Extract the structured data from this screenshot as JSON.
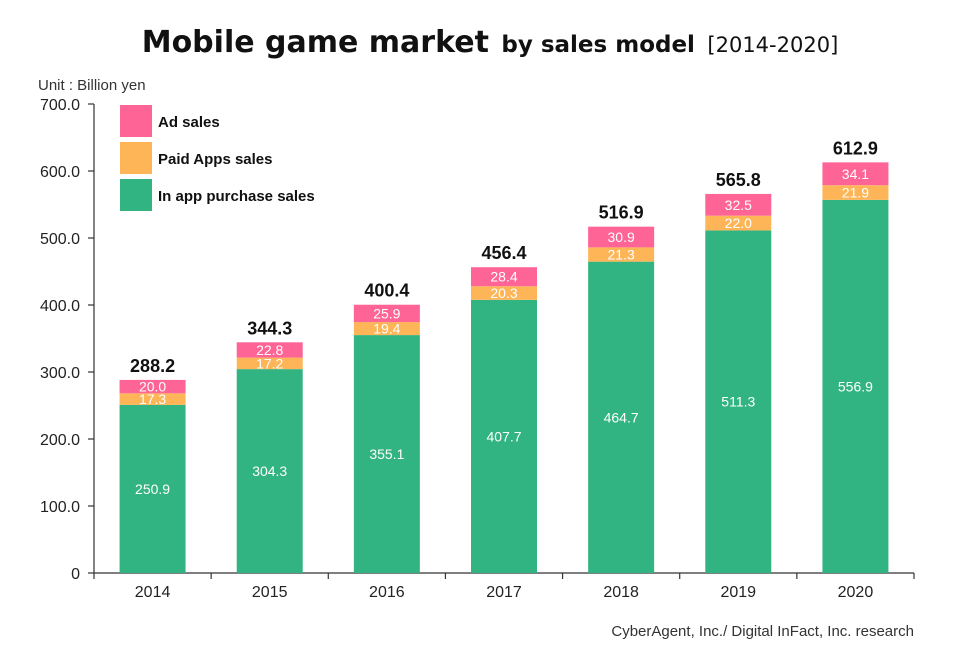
{
  "title": {
    "main": "Mobile game market",
    "sub": "by sales model",
    "years": "[2014-2020]"
  },
  "unit_label": "Unit : Billion yen",
  "source": "CyberAgent, Inc./ Digital InFact, Inc. research",
  "colors": {
    "ad": "#fe6496",
    "paid": "#fdb557",
    "inapp": "#32b482"
  },
  "chart_data": {
    "type": "bar",
    "stacked": true,
    "categories": [
      "2014",
      "2015",
      "2016",
      "2017",
      "2018",
      "2019",
      "2020"
    ],
    "ylim": [
      0,
      700
    ],
    "yticks": [
      {
        "value": 0,
        "label": "0"
      },
      {
        "value": 100,
        "label": "100.0"
      },
      {
        "value": 200,
        "label": "200.0"
      },
      {
        "value": 300,
        "label": "300.0"
      },
      {
        "value": 400,
        "label": "400.0"
      },
      {
        "value": 500,
        "label": "500.0"
      },
      {
        "value": 600,
        "label": "600.0"
      },
      {
        "value": 700,
        "label": "700.0"
      }
    ],
    "series": [
      {
        "key": "inapp",
        "name": "In app purchase sales",
        "values": [
          250.9,
          304.3,
          355.1,
          407.7,
          464.7,
          511.3,
          556.9
        ],
        "labels": [
          "250.9",
          "304.3",
          "355.1",
          "407.7",
          "464.7",
          "511.3",
          "556.9"
        ]
      },
      {
        "key": "paid",
        "name": "Paid Apps sales",
        "values": [
          17.3,
          17.2,
          19.4,
          20.3,
          21.3,
          22.0,
          21.9
        ],
        "labels": [
          "17.3",
          "17.2",
          "19.4",
          "20.3",
          "21.3",
          "22.0",
          "21.9"
        ]
      },
      {
        "key": "ad",
        "name": "Ad sales",
        "values": [
          20.0,
          22.8,
          25.9,
          28.4,
          30.9,
          32.5,
          34.1
        ],
        "labels": [
          "20.0",
          "22.8",
          "25.9",
          "28.4",
          "30.9",
          "32.5",
          "34.1"
        ]
      }
    ],
    "totals": [
      288.2,
      344.3,
      400.4,
      456.4,
      516.9,
      565.8,
      612.9
    ],
    "total_labels": [
      "288.2",
      "344.3",
      "400.4",
      "456.4",
      "516.9",
      "565.8",
      "612.9"
    ],
    "legend": [
      {
        "key": "ad",
        "label": "Ad sales"
      },
      {
        "key": "paid",
        "label": "Paid Apps sales"
      },
      {
        "key": "inapp",
        "label": "In app purchase sales"
      }
    ],
    "legend_position": "top-left",
    "grid": false
  }
}
